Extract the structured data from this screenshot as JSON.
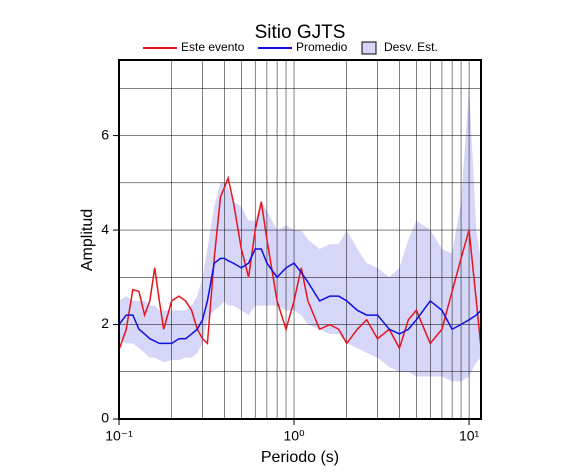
{
  "chart_data": {
    "type": "line",
    "title": "Sitio GJTS",
    "x_label": "Periodo (s)",
    "y_label": "Amplitud",
    "log_x": true,
    "grid": true,
    "x": [
      0.1,
      0.11,
      0.12,
      0.13,
      0.14,
      0.15,
      0.16,
      0.17,
      0.18,
      0.2,
      0.22,
      0.24,
      0.26,
      0.28,
      0.3,
      0.32,
      0.35,
      0.38,
      0.4,
      0.42,
      0.45,
      0.5,
      0.55,
      0.6,
      0.65,
      0.7,
      0.8,
      0.9,
      1.0,
      1.1,
      1.2,
      1.4,
      1.6,
      1.8,
      2.0,
      2.3,
      2.6,
      3.0,
      3.5,
      4.0,
      4.5,
      5,
      6,
      7,
      8,
      9,
      10,
      11,
      11.7
    ],
    "series": [
      {
        "name": "Este evento",
        "color": "#e8141c",
        "values": [
          1.47,
          1.9,
          2.74,
          2.7,
          2.2,
          2.5,
          3.2,
          2.5,
          1.9,
          2.5,
          2.6,
          2.5,
          2.3,
          1.9,
          1.7,
          1.6,
          3.4,
          4.7,
          4.9,
          5.1,
          4.6,
          3.6,
          3.0,
          4.0,
          4.6,
          3.8,
          2.5,
          1.9,
          2.5,
          3.2,
          2.5,
          1.9,
          2.0,
          1.9,
          1.6,
          1.9,
          2.1,
          1.7,
          1.9,
          1.5,
          2.1,
          2.3,
          1.6,
          1.9,
          2.7,
          3.4,
          4.0,
          2.5,
          1.5
        ]
      },
      {
        "name": "Promedio",
        "color": "#1010e0",
        "values": [
          2.0,
          2.2,
          2.2,
          1.9,
          1.8,
          1.7,
          1.65,
          1.6,
          1.6,
          1.6,
          1.7,
          1.7,
          1.8,
          1.9,
          2.1,
          2.5,
          3.3,
          3.4,
          3.4,
          3.35,
          3.3,
          3.2,
          3.3,
          3.6,
          3.6,
          3.3,
          3.0,
          3.2,
          3.3,
          3.1,
          2.9,
          2.5,
          2.6,
          2.6,
          2.5,
          2.3,
          2.2,
          2.2,
          1.9,
          1.8,
          1.9,
          2.1,
          2.5,
          2.3,
          1.9,
          2.0,
          2.1,
          2.2,
          2.3
        ]
      }
    ],
    "band": {
      "name": "Desv. Est.",
      "color": "#d6d6f8",
      "upper": [
        2.5,
        2.6,
        2.5,
        2.5,
        2.5,
        2.4,
        2.4,
        2.3,
        2.3,
        2.3,
        2.3,
        2.3,
        2.4,
        2.6,
        3.0,
        3.6,
        4.5,
        5.0,
        5.0,
        4.9,
        4.6,
        4.5,
        4.2,
        4.2,
        4.6,
        4.4,
        4.0,
        4.1,
        4.0,
        4.0,
        3.8,
        3.6,
        3.7,
        3.7,
        4.0,
        3.6,
        3.3,
        3.2,
        3.0,
        3.2,
        3.8,
        4.2,
        4.0,
        3.6,
        3.5,
        4.6,
        7.0,
        4.0,
        3.3
      ],
      "lower": [
        1.7,
        1.6,
        1.6,
        1.5,
        1.4,
        1.3,
        1.3,
        1.25,
        1.2,
        1.25,
        1.25,
        1.3,
        1.3,
        1.4,
        1.6,
        2.1,
        2.3,
        2.4,
        2.5,
        2.4,
        2.4,
        2.3,
        2.2,
        2.4,
        2.4,
        2.4,
        2.4,
        2.3,
        2.3,
        2.2,
        2.0,
        1.9,
        1.8,
        1.8,
        1.6,
        1.5,
        1.4,
        1.3,
        1.1,
        1.0,
        1.0,
        0.9,
        0.9,
        0.9,
        0.8,
        0.8,
        0.9,
        1.2,
        1.3
      ]
    },
    "xlim": [
      0.1,
      11.7
    ],
    "ylim": [
      0,
      7.6
    ],
    "xticks": [
      {
        "value": 0.1,
        "label": "10⁻¹"
      },
      {
        "value": 1,
        "label": "10⁰"
      },
      {
        "value": 10,
        "label": "10¹"
      }
    ],
    "yticks": [
      0,
      2,
      4,
      6
    ],
    "xgrid": [
      0.2,
      0.3,
      0.4,
      0.5,
      0.6,
      0.7,
      0.8,
      0.9,
      1,
      2,
      3,
      4,
      5,
      6,
      7,
      8,
      9,
      10
    ],
    "ygrid": [
      1,
      2,
      3,
      4,
      5,
      6,
      7
    ],
    "legend": "top"
  }
}
